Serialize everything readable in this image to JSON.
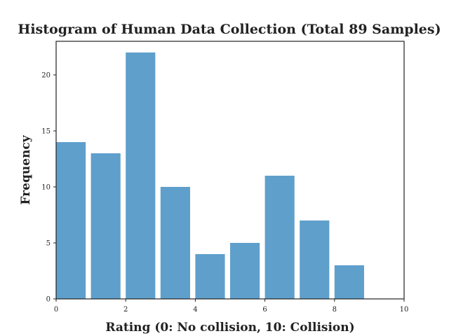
{
  "chart_data": {
    "type": "bar",
    "title": "Histogram of Human Data Collection (Total 89 Samples)",
    "xlabel": "Rating (0: No collision, 10: Collision)",
    "ylabel": "Frequency",
    "xlim": [
      0,
      10
    ],
    "ylim": [
      0,
      23
    ],
    "xticks": [
      0,
      2,
      4,
      6,
      8,
      10
    ],
    "yticks": [
      0,
      5,
      10,
      15,
      20
    ],
    "bar_width": 0.85,
    "bar_color": "#5f9fcc",
    "grid": false,
    "bins": [
      {
        "x": 0,
        "value": 14
      },
      {
        "x": 1,
        "value": 13
      },
      {
        "x": 2,
        "value": 22
      },
      {
        "x": 3,
        "value": 10
      },
      {
        "x": 4,
        "value": 4
      },
      {
        "x": 5,
        "value": 5
      },
      {
        "x": 6,
        "value": 11
      },
      {
        "x": 7,
        "value": 7
      },
      {
        "x": 8,
        "value": 3
      }
    ]
  }
}
